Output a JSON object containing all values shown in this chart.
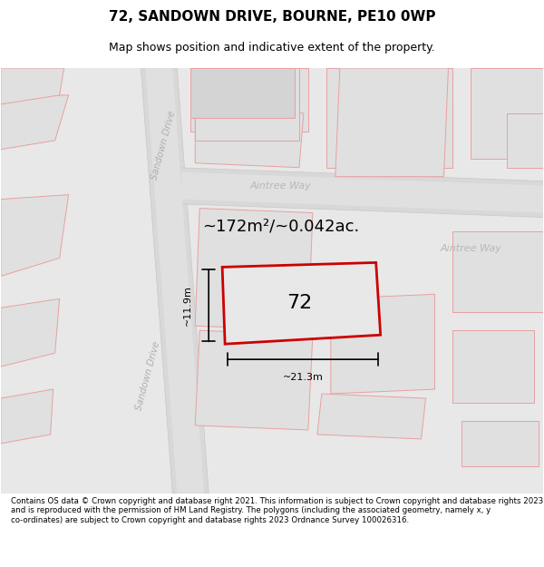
{
  "title": "72, SANDOWN DRIVE, BOURNE, PE10 0WP",
  "subtitle": "Map shows position and indicative extent of the property.",
  "footer": "Contains OS data © Crown copyright and database right 2021. This information is subject to Crown copyright and database rights 2023 and is reproduced with the permission of HM Land Registry. The polygons (including the associated geometry, namely x, y co-ordinates) are subject to Crown copyright and database rights 2023 Ordnance Survey 100026316.",
  "area_label": "~172m²/~0.042ac.",
  "number_label": "72",
  "width_label": "~21.3m",
  "height_label": "~11.9m",
  "bg_color": "#f5f5f5",
  "map_bg": "#e8e8e8",
  "road_color": "#d0d0d0",
  "plot_outline_color": "#cc0000",
  "building_fill": "#d8d8d8",
  "building_outline": "#e8a0a0",
  "street_text_color": "#b0b0b0",
  "title_color": "#000000",
  "footer_color": "#000000",
  "map_area": [
    0.0,
    0.08,
    1.0,
    0.86
  ]
}
